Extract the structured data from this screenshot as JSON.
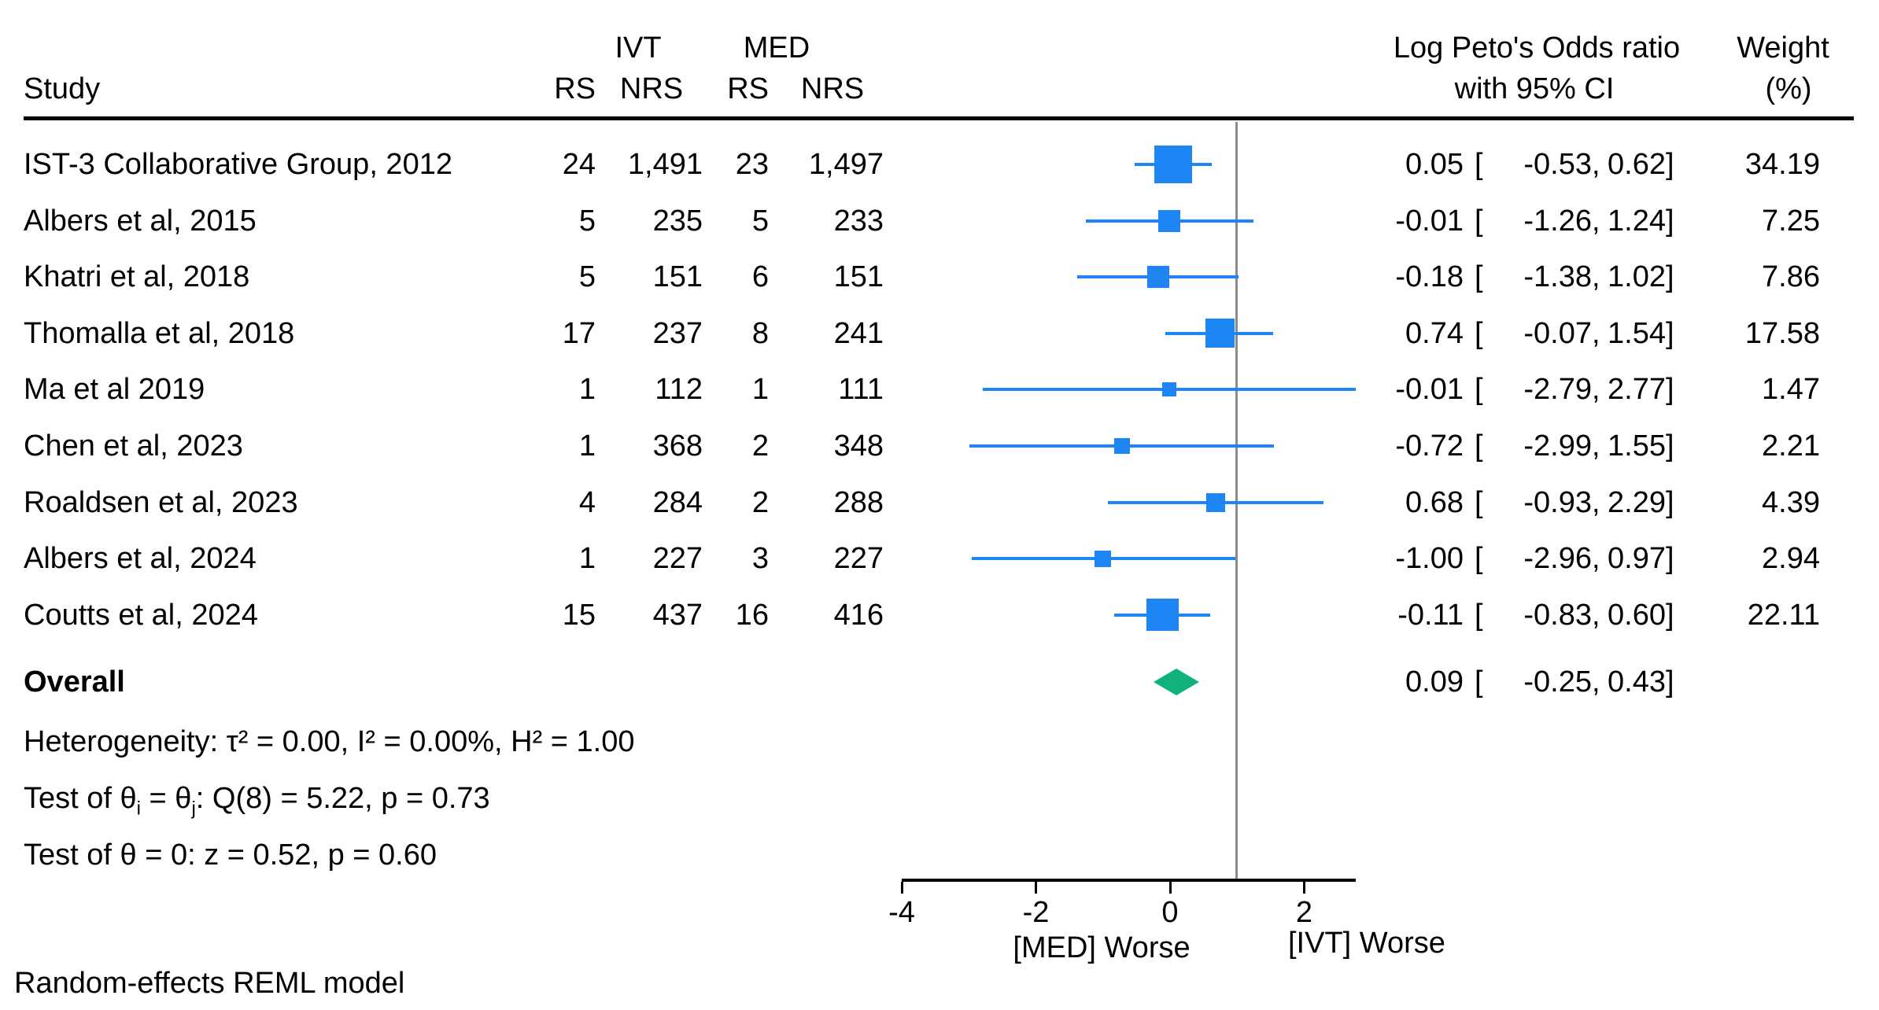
{
  "header": {
    "study": "Study",
    "ivt": "IVT",
    "med": "MED",
    "rs1": "RS",
    "nrs1": "NRS",
    "rs2": "RS",
    "nrs2": "NRS",
    "effect_line1": "Log Peto's Odds ratio",
    "effect_line2": "with 95% CI",
    "weight_line1": "Weight",
    "weight_line2": "(%)"
  },
  "chart_data": {
    "type": "forest",
    "effect_measure": "Log Peto's Odds ratio",
    "studies": [
      {
        "name": "IST-3 Collaborative Group, 2012",
        "ivt_rs": "24",
        "ivt_nrs": "1,491",
        "med_rs": "23",
        "med_nrs": "1,497",
        "est": "0.05",
        "lo": "-0.53",
        "hi": "0.62",
        "weight": "34.19"
      },
      {
        "name": "Albers et al, 2015",
        "ivt_rs": "5",
        "ivt_nrs": "235",
        "med_rs": "5",
        "med_nrs": "233",
        "est": "-0.01",
        "lo": "-1.26",
        "hi": "1.24",
        "weight": "7.25"
      },
      {
        "name": "Khatri et al, 2018",
        "ivt_rs": "5",
        "ivt_nrs": "151",
        "med_rs": "6",
        "med_nrs": "151",
        "est": "-0.18",
        "lo": "-1.38",
        "hi": "1.02",
        "weight": "7.86"
      },
      {
        "name": "Thomalla et al, 2018",
        "ivt_rs": "17",
        "ivt_nrs": "237",
        "med_rs": "8",
        "med_nrs": "241",
        "est": "0.74",
        "lo": "-0.07",
        "hi": "1.54",
        "weight": "17.58"
      },
      {
        "name": "Ma et al 2019",
        "ivt_rs": "1",
        "ivt_nrs": "112",
        "med_rs": "1",
        "med_nrs": "111",
        "est": "-0.01",
        "lo": "-2.79",
        "hi": "2.77",
        "weight": "1.47"
      },
      {
        "name": "Chen et al, 2023",
        "ivt_rs": "1",
        "ivt_nrs": "368",
        "med_rs": "2",
        "med_nrs": "348",
        "est": "-0.72",
        "lo": "-2.99",
        "hi": "1.55",
        "weight": "2.21"
      },
      {
        "name": "Roaldsen et al, 2023",
        "ivt_rs": "4",
        "ivt_nrs": "284",
        "med_rs": "2",
        "med_nrs": "288",
        "est": "0.68",
        "lo": "-0.93",
        "hi": "2.29",
        "weight": "4.39"
      },
      {
        "name": "Albers et al, 2024",
        "ivt_rs": "1",
        "ivt_nrs": "227",
        "med_rs": "3",
        "med_nrs": "227",
        "est": "-1.00",
        "lo": "-2.96",
        "hi": "0.97",
        "weight": "2.94"
      },
      {
        "name": "Coutts et al, 2024",
        "ivt_rs": "15",
        "ivt_nrs": "437",
        "med_rs": "16",
        "med_nrs": "416",
        "est": "-0.11",
        "lo": "-0.83",
        "hi": "0.60",
        "weight": "22.11"
      }
    ],
    "overall": {
      "label": "Overall",
      "est": "0.09",
      "lo": "-0.25",
      "hi": "0.43"
    },
    "axis": {
      "tick_values": [
        -4,
        -2,
        0,
        2
      ],
      "tick_labels": [
        "-4",
        "-2",
        "0",
        "2"
      ],
      "ref_line_value": 1,
      "label_left": "[MED] Worse",
      "label_right": "[IVT] Worse"
    },
    "legend": null,
    "grid": false
  },
  "stats": {
    "heterogeneity": "Heterogeneity: τ² = 0.00, I² = 0.00%, H² = 1.00",
    "test_theta": {
      "pre": "Test of θ",
      "sub1": "i",
      "mid": " = θ",
      "sub2": "j",
      "post": ": Q(8) = 5.22, p = 0.73"
    },
    "test_z": "Test of θ = 0: z = 0.52, p = 0.60"
  },
  "footer": "Random-effects REML model",
  "colors": {
    "marker_blue": "#1E86F4",
    "diamond_green": "#10B27A",
    "ref_line_gray": "#8C8C8C",
    "text_black": "#000000"
  }
}
